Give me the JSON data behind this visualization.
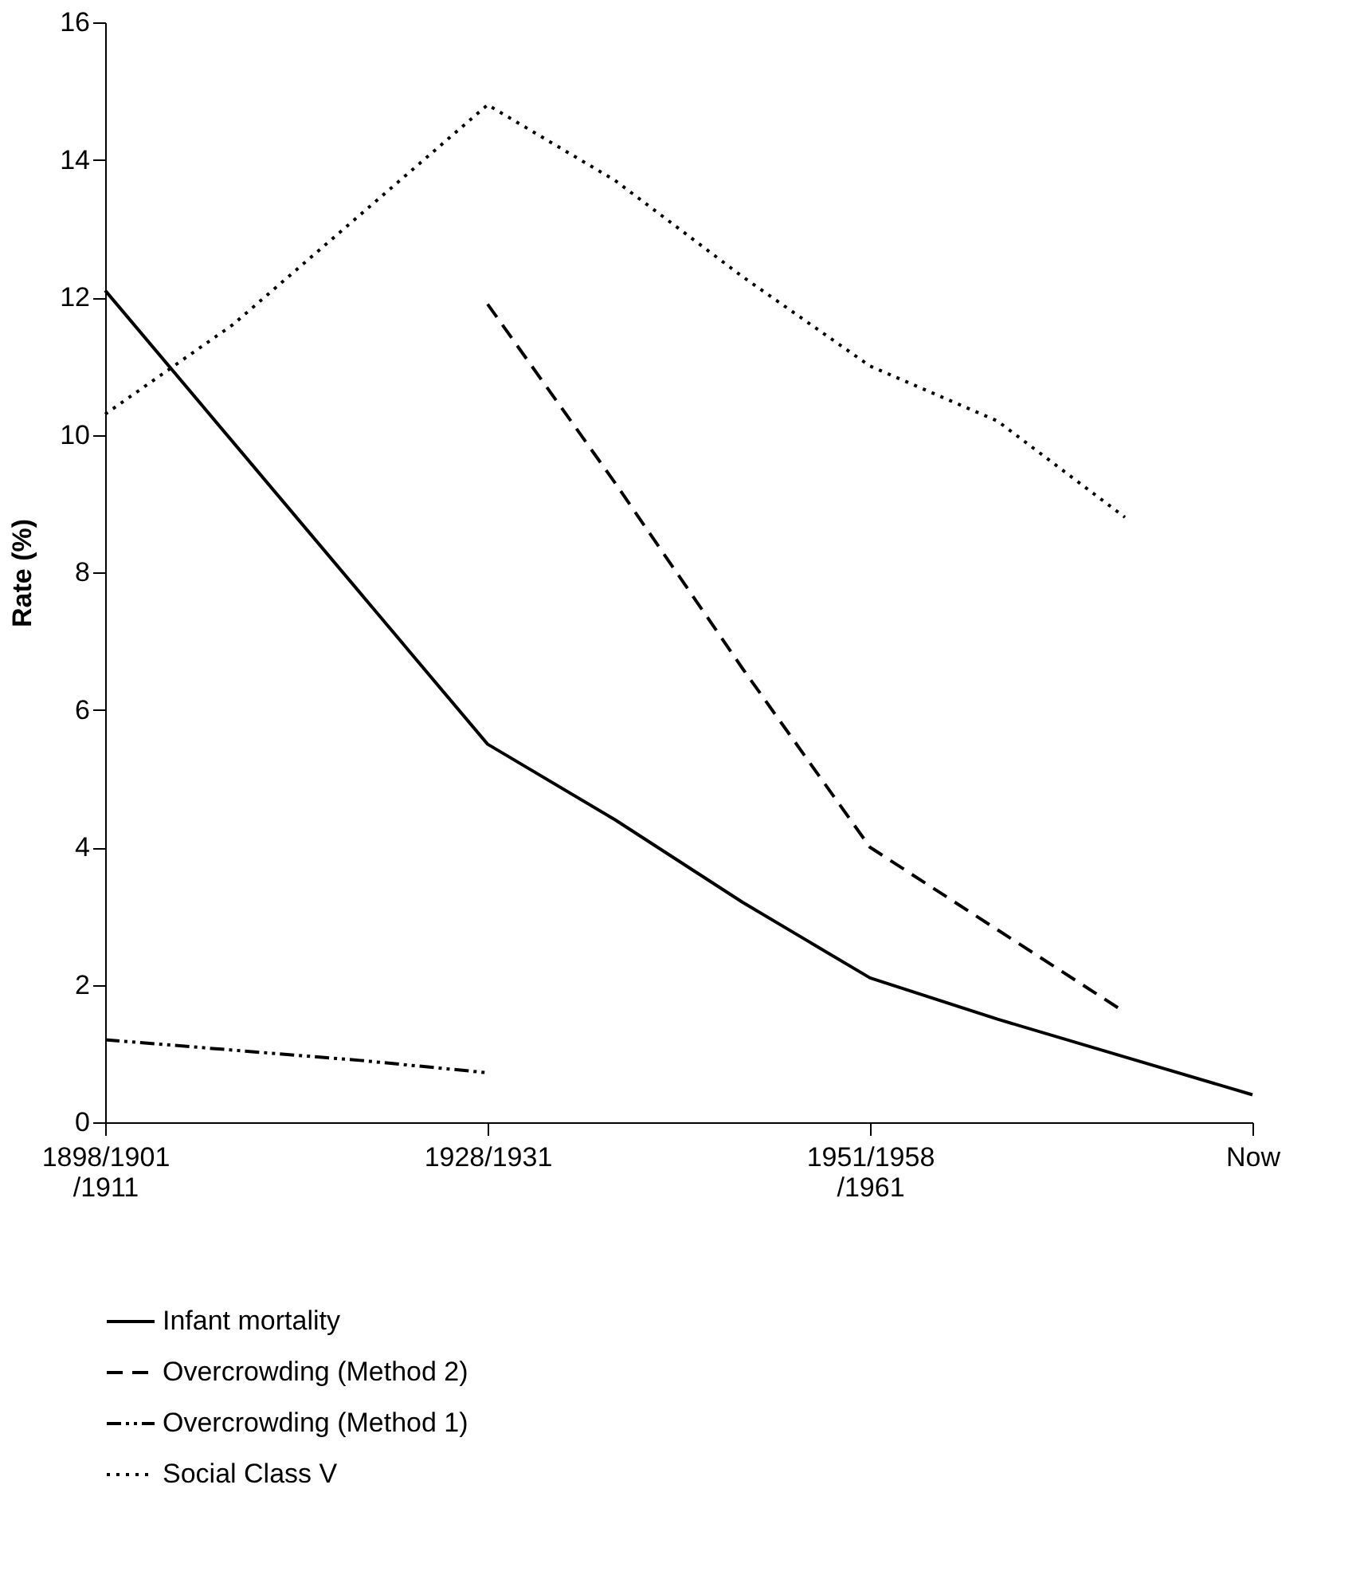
{
  "chart_data": {
    "type": "line",
    "ylabel": "Rate (%)",
    "categories": [
      "1898/1901\n/1911",
      null,
      null,
      "1928/1931",
      null,
      null,
      "1951/1958\n/1961",
      null,
      null,
      "Now"
    ],
    "ylim": [
      0,
      16
    ],
    "yticks": [
      0,
      2,
      4,
      6,
      8,
      10,
      12,
      14,
      16
    ],
    "grid": false,
    "legend": "bottom",
    "series": [
      {
        "name": "Infant mortality",
        "color": "#000000",
        "line_style": "solid",
        "values": [
          12.1,
          9.9,
          7.7,
          5.5,
          4.4,
          3.2,
          2.1,
          1.5,
          0.95,
          0.4
        ]
      },
      {
        "name": "Overcrowding (Method 2)",
        "color": "#000000",
        "line_style": "dashed",
        "values": [
          null,
          null,
          null,
          11.9,
          9.3,
          6.6,
          4.0,
          2.8,
          1.6,
          null
        ]
      },
      {
        "name": "Overcrowding (Method 1)",
        "color": "#000000",
        "line_style": "dashdotdot",
        "values": [
          1.2,
          1.05,
          0.9,
          0.72,
          null,
          null,
          null,
          null,
          null,
          null
        ]
      },
      {
        "name": "Social Class V",
        "color": "#000000",
        "line_style": "dotted",
        "values": [
          10.3,
          11.6,
          13.2,
          14.8,
          13.7,
          12.3,
          11.0,
          10.2,
          8.8,
          null
        ]
      }
    ]
  }
}
